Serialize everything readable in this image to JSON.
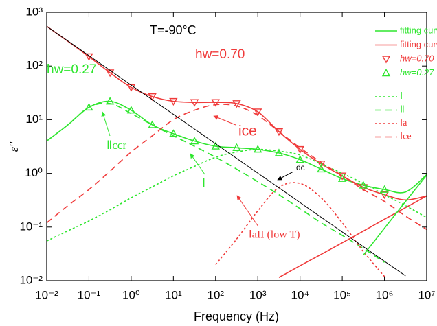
{
  "chart_data": {
    "type": "line",
    "x_label": "Frequency (Hz)",
    "y_label": "ε''",
    "xscale": "log",
    "yscale": "log",
    "xlim": [
      0.01,
      10000000
    ],
    "ylim": [
      0.01,
      1000
    ],
    "xticks": [
      {
        "value": 0.01,
        "label": "10⁻²"
      },
      {
        "value": 0.1,
        "label": "10⁻¹"
      },
      {
        "value": 1,
        "label": "10⁰"
      },
      {
        "value": 10,
        "label": "10¹"
      },
      {
        "value": 100,
        "label": "10²"
      },
      {
        "value": 1000,
        "label": "10³"
      },
      {
        "value": 10000,
        "label": "10⁴"
      },
      {
        "value": 100000,
        "label": "10⁵"
      },
      {
        "value": 1000000,
        "label": "10⁶"
      },
      {
        "value": 10000000,
        "label": "10⁷"
      }
    ],
    "yticks": [
      {
        "value": 0.01,
        "label": "10⁻²"
      },
      {
        "value": 0.1,
        "label": "10⁻¹"
      },
      {
        "value": 1,
        "label": "10⁰"
      },
      {
        "value": 10,
        "label": "10¹"
      },
      {
        "value": 100,
        "label": "10²"
      },
      {
        "value": 1000,
        "label": "10³"
      }
    ],
    "x": [
      0.01,
      0.0316,
      0.1,
      0.316,
      1,
      3.16,
      10,
      31.6,
      100,
      316,
      1000,
      3162,
      10000,
      31623,
      100000,
      316228,
      1000000,
      3162278,
      10000000
    ],
    "series": [
      {
        "name": "fitting curve",
        "color": "#2ee62e",
        "style": "solid",
        "values": [
          4,
          8,
          17,
          22,
          15,
          8,
          5.5,
          4,
          3.2,
          3,
          2.8,
          2.4,
          1.8,
          1.2,
          0.8,
          0.6,
          0.5,
          0.45,
          0.95
        ]
      },
      {
        "name": "fitting curve",
        "color": "#f03a3a",
        "style": "solid",
        "values": [
          550,
          290,
          150,
          75,
          40,
          27,
          22,
          21,
          21,
          20,
          14,
          6,
          2.8,
          1.5,
          0.9,
          0.55,
          0.4,
          0.32,
          0.38
        ]
      },
      {
        "name": "hw=0.70",
        "color": "#f03a3a",
        "marker": "triangle-down",
        "values": [
          null,
          null,
          150,
          75,
          40,
          27,
          22,
          21,
          21,
          20,
          14,
          6,
          2.8,
          1.5,
          0.9,
          0.55,
          0.4,
          null,
          null
        ]
      },
      {
        "name": "hw=0.27",
        "color": "#2ee62e",
        "marker": "triangle-up",
        "values": [
          null,
          null,
          17,
          22,
          15,
          8,
          5.5,
          4,
          3.2,
          3,
          2.8,
          2.4,
          1.8,
          1.2,
          0.8,
          0.6,
          0.5,
          null,
          null
        ]
      },
      {
        "name": "Ⅰ",
        "color": "#2ee62e",
        "style": "dotted",
        "values": [
          0.055,
          0.085,
          0.13,
          0.21,
          0.35,
          0.56,
          0.9,
          1.35,
          2,
          2.5,
          2.8,
          2.6,
          2.2,
          1.5,
          1,
          0.65,
          0.4,
          0.25,
          0.15
        ]
      },
      {
        "name": "Ⅱ",
        "color": "#2ee62e",
        "style": "dashed",
        "values": [
          4,
          8,
          17,
          20,
          13,
          8,
          5,
          3.2,
          2,
          1.2,
          0.7,
          0.4,
          0.22,
          0.12,
          0.07,
          0.04,
          0.022,
          null,
          null
        ]
      },
      {
        "name": "Ⅰa",
        "color": "#f03a3a",
        "style": "dotted",
        "values": [
          null,
          null,
          null,
          null,
          null,
          null,
          null,
          null,
          0.02,
          0.06,
          0.2,
          0.55,
          0.65,
          0.35,
          0.12,
          0.035,
          0.012,
          null,
          null
        ]
      },
      {
        "name": "Ⅰce",
        "color": "#f03a3a",
        "style": "dashed",
        "values": [
          0.12,
          0.25,
          0.5,
          1.1,
          2.5,
          5,
          10,
          15,
          19,
          18,
          12,
          6,
          3,
          1.6,
          0.9,
          0.5,
          0.3,
          0.16,
          0.09
        ]
      },
      {
        "color": "#000000",
        "style": "solid",
        "values": [
          550,
          293,
          156,
          83,
          44,
          23.6,
          12.6,
          6.7,
          3.56,
          1.9,
          1.01,
          0.54,
          0.286,
          0.152,
          0.081,
          0.043,
          0.023,
          0.0123,
          null
        ]
      },
      {
        "color": "#f03a3a",
        "style": "solid",
        "values": [
          null,
          null,
          null,
          null,
          null,
          null,
          null,
          null,
          null,
          null,
          null,
          0.0115,
          0.019,
          0.031,
          0.051,
          0.084,
          0.14,
          0.23,
          0.38
        ]
      },
      {
        "color": "#2ee62e",
        "style": "solid",
        "values": [
          null,
          null,
          null,
          null,
          null,
          null,
          null,
          null,
          null,
          null,
          null,
          null,
          null,
          null,
          null,
          0.03,
          0.095,
          0.3,
          0.93
        ]
      }
    ],
    "annotations": [
      {
        "text": "T=-90°C",
        "color": "#000000"
      },
      {
        "text": "hw=0.27",
        "color": "#2ee62e"
      },
      {
        "text": "hw=0.70",
        "color": "#f03a3a"
      },
      {
        "text": "ice",
        "color": "#f03a3a"
      },
      {
        "text": "Ⅱccr",
        "color": "#2ee62e"
      },
      {
        "text": "Ⅰ",
        "color": "#2ee62e"
      },
      {
        "text": "dc",
        "color": "#000000"
      },
      {
        "text": "ⅠaII (low T)",
        "color": "#f03a3a"
      }
    ]
  }
}
